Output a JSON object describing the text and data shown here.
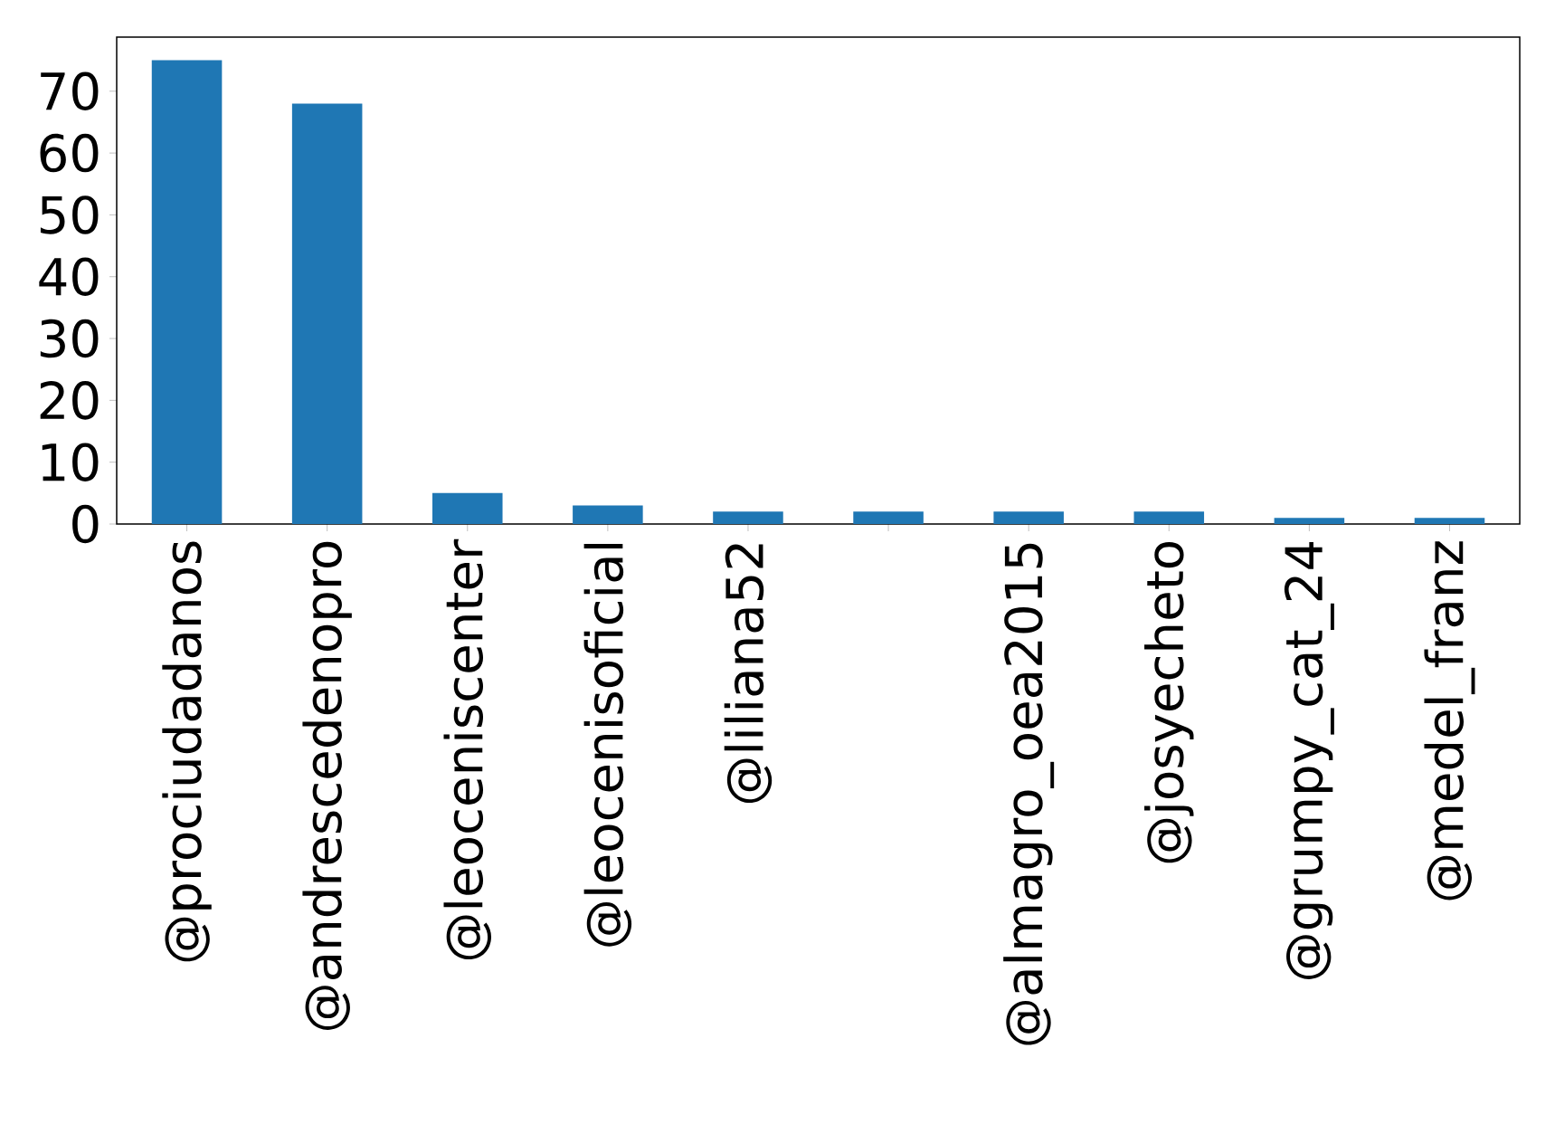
{
  "chart_data": {
    "type": "bar",
    "categories": [
      "@prociudadanos",
      "@andrescedenopro",
      "@leoceniscenter",
      "@leocenisoficial",
      "@liliana52",
      null,
      "@almagro_oea2015",
      "@josyecheto",
      "@grumpy_cat_24",
      "@medel_franz"
    ],
    "values": [
      75,
      68,
      5,
      3,
      2,
      2,
      2,
      2,
      1,
      1
    ],
    "color": "#1f77b4",
    "ylim": [
      0,
      78.75
    ],
    "yticks": [
      0,
      10,
      20,
      30,
      40,
      50,
      60,
      70
    ],
    "grid": false
  }
}
